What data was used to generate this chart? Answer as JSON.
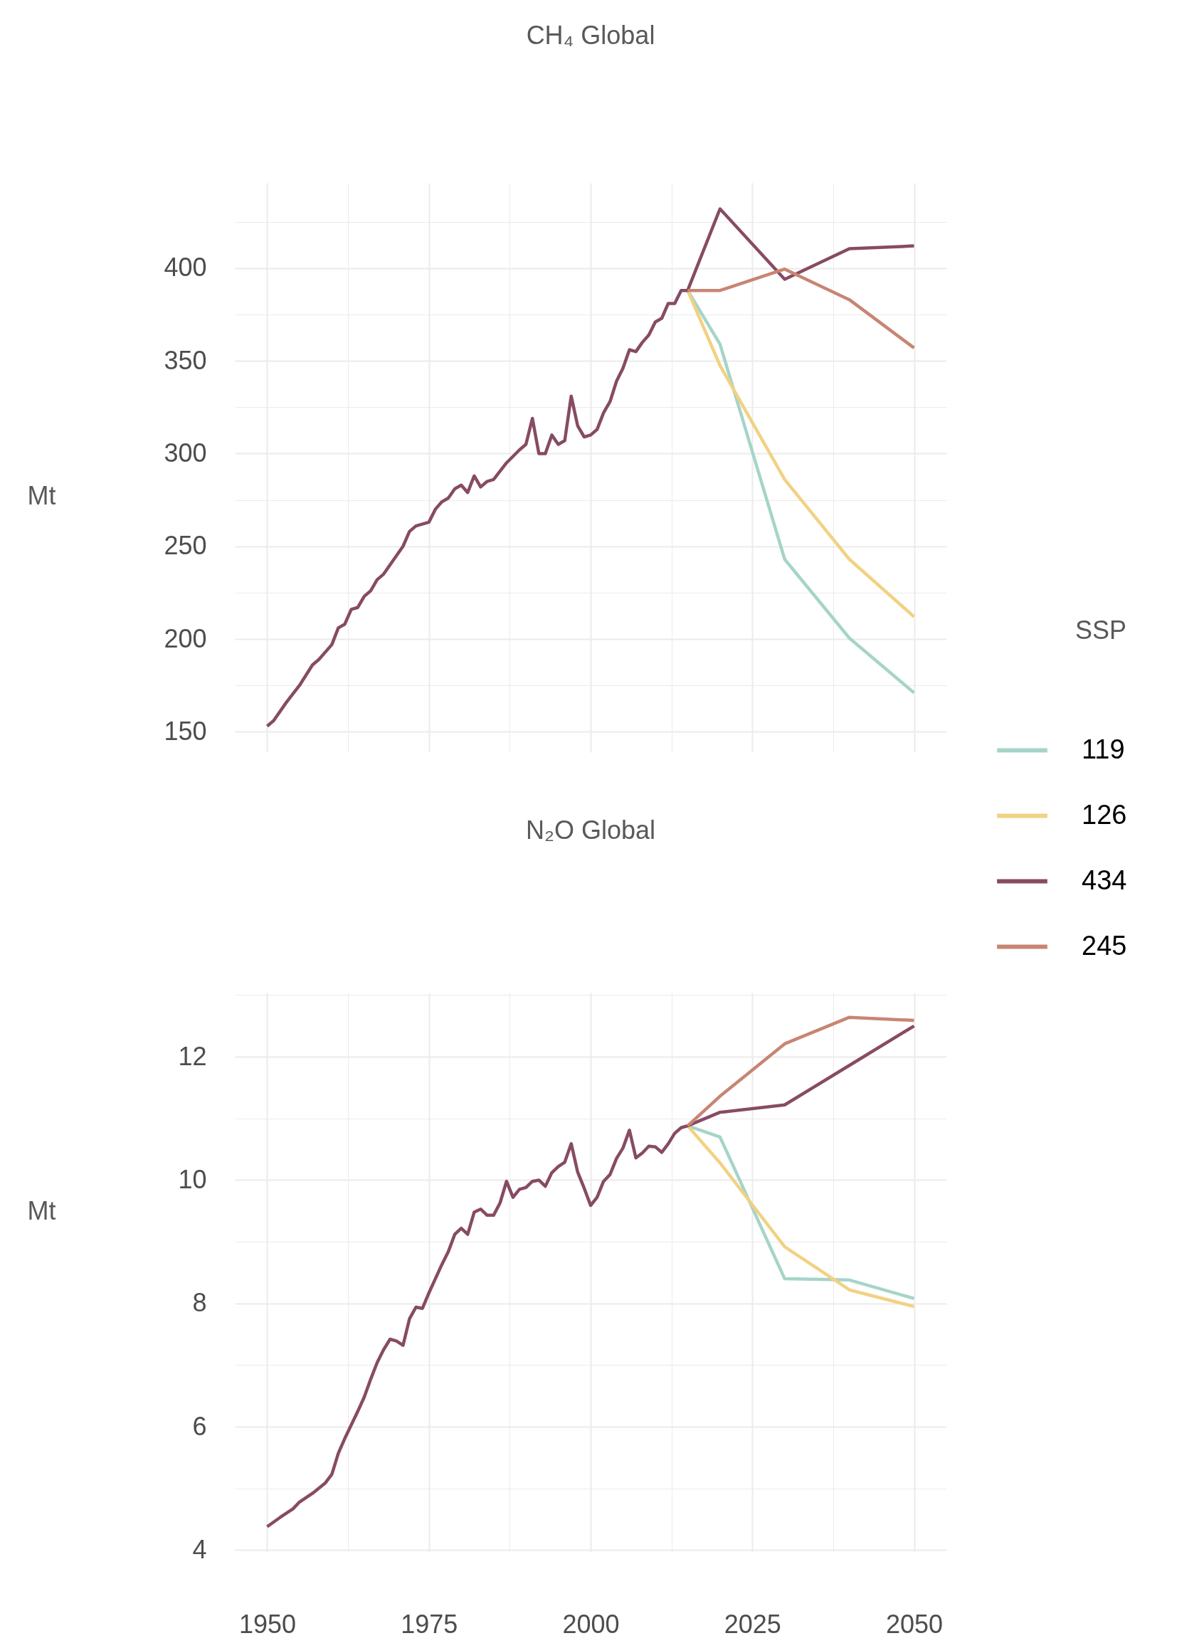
{
  "chart_data": [
    {
      "type": "line",
      "title": "CH₄ Global",
      "ylabel": "Mt",
      "xlim": [
        1945,
        2055
      ],
      "ylim": [
        139,
        446
      ],
      "xticks": [
        1950,
        {
          "value": 1962.5,
          "label": null
        },
        1975,
        {
          "value": 1987.5,
          "label": null
        },
        2000,
        {
          "value": 2012.5,
          "label": null
        },
        2025,
        {
          "value": 2037.5,
          "label": null
        },
        2050
      ],
      "yticks": [
        150,
        {
          "value": 175,
          "label": null
        },
        200,
        {
          "value": 225,
          "label": null
        },
        250,
        {
          "value": 275,
          "label": null
        },
        300,
        {
          "value": 325,
          "label": null
        },
        350,
        {
          "value": 375,
          "label": null
        },
        400,
        {
          "value": 425,
          "label": null
        }
      ],
      "tick_labels": "y",
      "grid": true,
      "legend": "right",
      "legend_title": "SSP",
      "series": [
        {
          "name": "119",
          "color": "#a6d4c9",
          "x": [
            2015,
            2020,
            2030,
            2040,
            2050
          ],
          "values": [
            388,
            359,
            243,
            200.5,
            171
          ]
        },
        {
          "name": "126",
          "color": "#f1d283",
          "x": [
            2015,
            2020,
            2030,
            2040,
            2050
          ],
          "values": [
            388,
            347.5,
            286,
            243,
            212
          ]
        },
        {
          "name": "434",
          "color": "#874b63",
          "x": [
            1950,
            1951,
            1953,
            1955,
            1957,
            1958,
            1960,
            1961,
            1962,
            1963,
            1964,
            1965,
            1966,
            1967,
            1968,
            1969,
            1971,
            1972,
            1973,
            1975,
            1976,
            1977,
            1978,
            1979,
            1980,
            1981,
            1982,
            1983,
            1984,
            1985,
            1987,
            1989,
            1990,
            1991,
            1992,
            1993,
            1994,
            1995,
            1996,
            1997,
            1998,
            1999,
            2000,
            2001,
            2002,
            2003,
            2004,
            2005,
            2006,
            2007,
            2008,
            2009,
            2010,
            2011,
            2012,
            2013,
            2014,
            2015,
            2020,
            2030,
            2040,
            2050
          ],
          "values": [
            153,
            156,
            166,
            175,
            186,
            189,
            197,
            206,
            208,
            216,
            217,
            223,
            226,
            232,
            235,
            240,
            250,
            258,
            261,
            263,
            270,
            274,
            276,
            281,
            283,
            279,
            288,
            282,
            285,
            286,
            295,
            302,
            305,
            319,
            300,
            300,
            310,
            305,
            307,
            331,
            315,
            309,
            310,
            313,
            322,
            328,
            339,
            346,
            356,
            355,
            360,
            364,
            371,
            373,
            381,
            381,
            388,
            388,
            432,
            394,
            410.5,
            412
          ]
        },
        {
          "name": "245",
          "color": "#c88573",
          "x": [
            2015,
            2020,
            2030,
            2040,
            2050
          ],
          "values": [
            388,
            388,
            399.5,
            383,
            357
          ]
        }
      ]
    },
    {
      "type": "line",
      "title": "N₂O Global",
      "ylabel": "Mt",
      "xlim": [
        1945,
        2055
      ],
      "ylim": [
        3.97,
        13.04
      ],
      "xticks": [
        1950,
        {
          "value": 1962.5,
          "label": null
        },
        1975,
        {
          "value": 1987.5,
          "label": null
        },
        2000,
        {
          "value": 2012.5,
          "label": null
        },
        2025,
        {
          "value": 2037.5,
          "label": null
        },
        2050
      ],
      "yticks": [
        4,
        {
          "value": 5,
          "label": null
        },
        6,
        {
          "value": 7,
          "label": null
        },
        8,
        {
          "value": 9,
          "label": null
        },
        10,
        {
          "value": 11,
          "label": null
        },
        12,
        {
          "value": 13,
          "label": null
        }
      ],
      "grid": true,
      "series": [
        {
          "color": "#a6d4c9",
          "x": [
            2015,
            2020,
            2030,
            2040,
            2050
          ],
          "values": [
            10.88,
            10.7,
            8.4,
            8.38,
            8.08
          ]
        },
        {
          "color": "#f1d283",
          "x": [
            2015,
            2020,
            2030,
            2040,
            2050
          ],
          "values": [
            10.88,
            10.28,
            8.92,
            8.22,
            7.95
          ]
        },
        {
          "color": "#874b63",
          "x": [
            1950,
            1952,
            1954,
            1955,
            1957,
            1959,
            1960,
            1961,
            1962,
            1963,
            1964,
            1965,
            1966,
            1967,
            1968,
            1969,
            1970,
            1971,
            1972,
            1973,
            1974,
            1975,
            1976,
            1977,
            1978,
            1979,
            1980,
            1981,
            1982,
            1983,
            1984,
            1985,
            1986,
            1987,
            1988,
            1989,
            1990,
            1991,
            1992,
            1993,
            1994,
            1995,
            1996,
            1997,
            1998,
            1999,
            2000,
            2001,
            2002,
            2003,
            2004,
            2005,
            2006,
            2007,
            2008,
            2009,
            2010,
            2011,
            2012,
            2013,
            2014,
            2015,
            2020,
            2030,
            2040,
            2050
          ],
          "values": [
            4.38,
            4.53,
            4.67,
            4.78,
            4.92,
            5.09,
            5.23,
            5.57,
            5.81,
            6.03,
            6.25,
            6.48,
            6.77,
            7.04,
            7.25,
            7.42,
            7.39,
            7.32,
            7.75,
            7.94,
            7.92,
            8.17,
            8.4,
            8.63,
            8.84,
            9.12,
            9.22,
            9.12,
            9.48,
            9.53,
            9.43,
            9.43,
            9.63,
            9.98,
            9.72,
            9.85,
            9.88,
            9.98,
            10.0,
            9.9,
            10.12,
            10.22,
            10.29,
            10.59,
            10.13,
            9.87,
            9.59,
            9.72,
            9.98,
            10.09,
            10.35,
            10.52,
            10.81,
            10.36,
            10.44,
            10.55,
            10.54,
            10.45,
            10.59,
            10.76,
            10.85,
            10.88,
            11.1,
            11.22,
            11.86,
            12.5
          ]
        },
        {
          "color": "#c88573",
          "x": [
            2015,
            2020,
            2030,
            2040,
            2050
          ],
          "values": [
            10.88,
            11.36,
            12.21,
            12.64,
            12.59
          ]
        }
      ]
    }
  ]
}
